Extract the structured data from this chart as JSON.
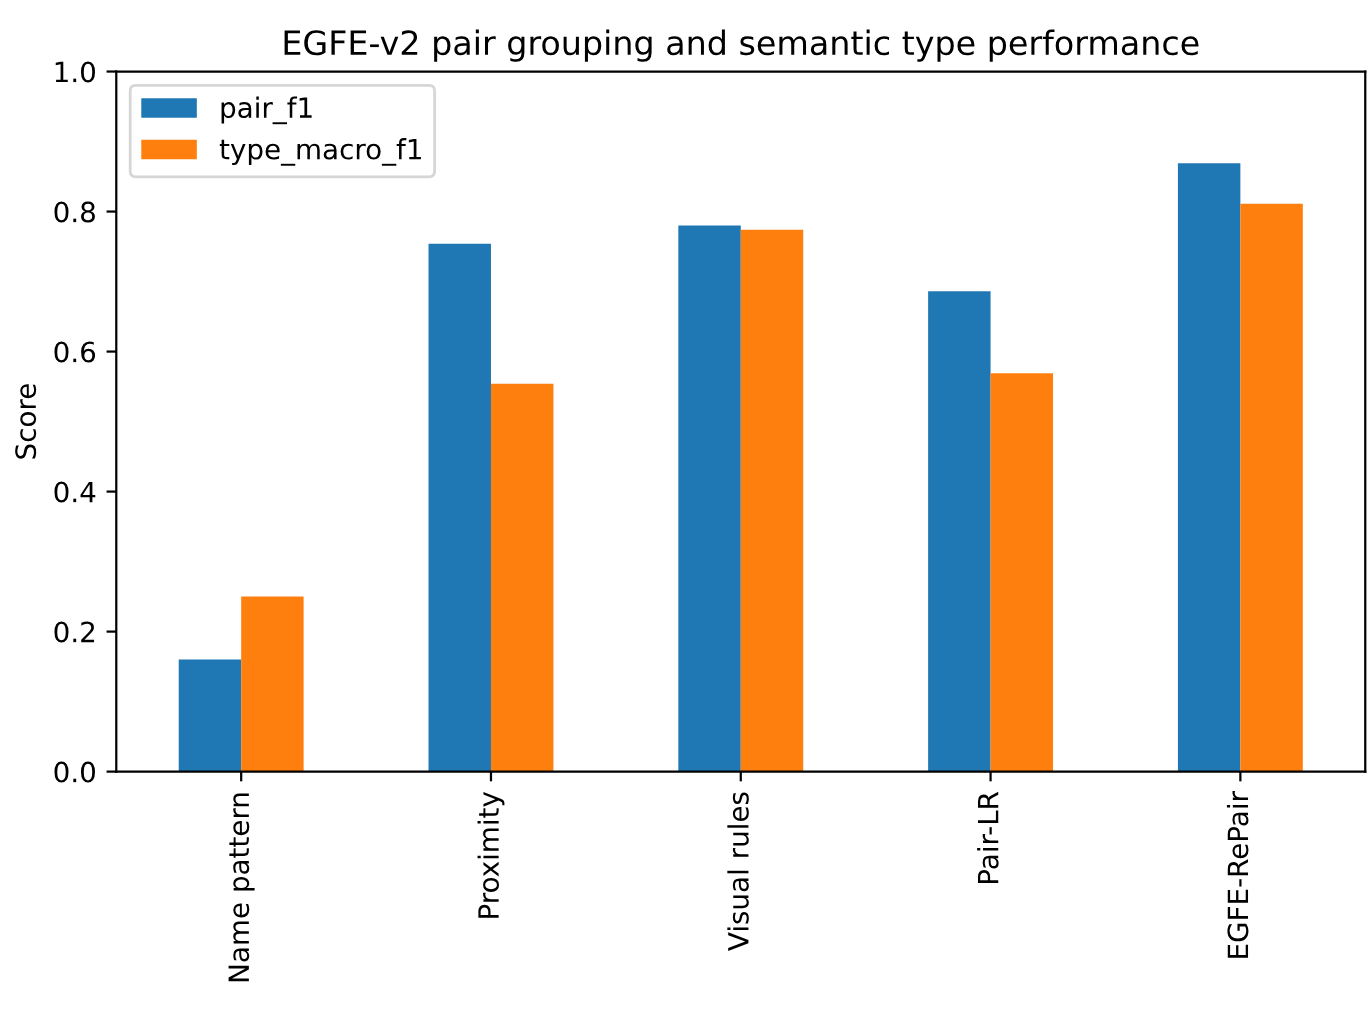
{
  "chart_data": {
    "type": "bar",
    "title": "EGFE-v2 pair grouping and semantic type performance",
    "ylabel": "Score",
    "categories": [
      "Name pattern",
      "Proximity",
      "Visual rules",
      "Pair-LR",
      "EGFE-RePair"
    ],
    "series": [
      {
        "name": "pair_f1",
        "color": "#1f77b4",
        "values": [
          0.16,
          0.754,
          0.78,
          0.686,
          0.869
        ]
      },
      {
        "name": "type_macro_f1",
        "color": "#ff7f0e",
        "values": [
          0.25,
          0.554,
          0.774,
          0.569,
          0.811
        ]
      }
    ],
    "ylim": [
      0,
      1
    ],
    "yticks": [
      {
        "value": 0,
        "label": "0.0"
      },
      {
        "value": 0.2,
        "label": "0.2"
      },
      {
        "value": 0.4,
        "label": "0.4"
      },
      {
        "value": 0.6,
        "label": "0.6"
      },
      {
        "value": 0.8,
        "label": "0.8"
      },
      {
        "value": 1,
        "label": "1.0"
      }
    ],
    "legend": "top left",
    "grid": false
  }
}
